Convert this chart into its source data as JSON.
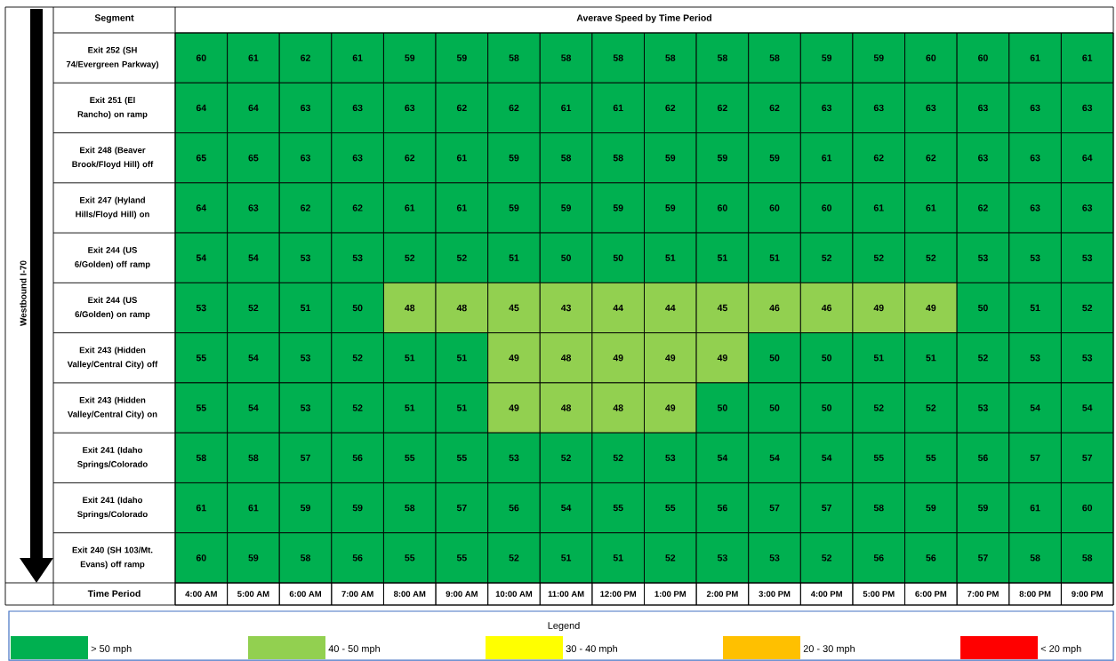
{
  "chart_data": {
    "type": "heatmap",
    "title": "Averave Speed by Time Period",
    "xlabel": "Time Period",
    "ylabel": "Westbound I-70",
    "legend_title": "Legend",
    "annotations": [
      "Segment",
      "> 50 mph",
      "40 - 50 mph",
      "30 - 40 mph",
      "20 - 30 mph",
      "< 20 mph"
    ],
    "categories": [
      "4:00 AM",
      "5:00 AM",
      "6:00 AM",
      "7:00 AM",
      "8:00 AM",
      "9:00 AM",
      "10:00 AM",
      "11:00 AM",
      "12:00 PM",
      "1:00 PM",
      "2:00 PM",
      "3:00 PM",
      "4:00 PM",
      "5:00 PM",
      "6:00 PM",
      "7:00 PM",
      "8:00 PM",
      "9:00 PM"
    ],
    "y_categories": [
      "Exit 252 (SH 74/Evergreen Parkway)",
      "Exit 251 (El Rancho) on ramp",
      "Exit 248 (Beaver Brook/Floyd Hill) off",
      "Exit 247 (Hyland Hills/Floyd Hill) on",
      "Exit 244 (US 6/Golden) off ramp",
      "Exit 244 (US 6/Golden) on ramp",
      "Exit 243 (Hidden Valley/Central City) off",
      "Exit 243 (Hidden Valley/Central City) on",
      "Exit 241 (Idaho Springs/Colorado",
      "Exit 241 (Idaho Springs/Colorado",
      "Exit 240 (SH 103/Mt. Evans) off ramp"
    ],
    "cells": [
      [
        60,
        61,
        62,
        61,
        59,
        59,
        58,
        58,
        58,
        58,
        58,
        58,
        59,
        59,
        60,
        60,
        61,
        61
      ],
      [
        64,
        64,
        63,
        63,
        63,
        62,
        62,
        61,
        61,
        62,
        62,
        62,
        63,
        63,
        63,
        63,
        63,
        63
      ],
      [
        65,
        65,
        63,
        63,
        62,
        61,
        59,
        58,
        58,
        59,
        59,
        59,
        61,
        62,
        62,
        63,
        63,
        64
      ],
      [
        64,
        63,
        62,
        62,
        61,
        61,
        59,
        59,
        59,
        59,
        60,
        60,
        60,
        61,
        61,
        62,
        63,
        63
      ],
      [
        54,
        54,
        53,
        53,
        52,
        52,
        51,
        50,
        50,
        51,
        51,
        51,
        52,
        52,
        52,
        53,
        53,
        53
      ],
      [
        53,
        52,
        51,
        50,
        48,
        48,
        45,
        43,
        44,
        44,
        45,
        46,
        46,
        49,
        49,
        50,
        51,
        52
      ],
      [
        55,
        54,
        53,
        52,
        51,
        51,
        49,
        48,
        49,
        49,
        49,
        50,
        50,
        51,
        51,
        52,
        53,
        53
      ],
      [
        55,
        54,
        53,
        52,
        51,
        51,
        49,
        48,
        48,
        49,
        50,
        50,
        50,
        52,
        52,
        53,
        54,
        54
      ],
      [
        58,
        58,
        57,
        56,
        55,
        55,
        53,
        52,
        52,
        53,
        54,
        54,
        54,
        55,
        55,
        56,
        57,
        57
      ],
      [
        61,
        61,
        59,
        59,
        58,
        57,
        56,
        54,
        55,
        55,
        56,
        57,
        57,
        58,
        59,
        59,
        61,
        60
      ],
      [
        60,
        59,
        58,
        56,
        55,
        55,
        52,
        51,
        51,
        52,
        53,
        53,
        52,
        56,
        56,
        57,
        58,
        58
      ]
    ],
    "colors": [
      [
        "#00b050",
        "#00b050",
        "#00b050",
        "#00b050",
        "#00b050",
        "#00b050",
        "#00b050",
        "#00b050",
        "#00b050",
        "#00b050",
        "#00b050",
        "#00b050",
        "#00b050",
        "#00b050",
        "#00b050",
        "#00b050",
        "#00b050",
        "#00b050"
      ],
      [
        "#00b050",
        "#00b050",
        "#00b050",
        "#00b050",
        "#00b050",
        "#00b050",
        "#00b050",
        "#00b050",
        "#00b050",
        "#00b050",
        "#00b050",
        "#00b050",
        "#00b050",
        "#00b050",
        "#00b050",
        "#00b050",
        "#00b050",
        "#00b050"
      ],
      [
        "#00b050",
        "#00b050",
        "#00b050",
        "#00b050",
        "#00b050",
        "#00b050",
        "#00b050",
        "#00b050",
        "#00b050",
        "#00b050",
        "#00b050",
        "#00b050",
        "#00b050",
        "#00b050",
        "#00b050",
        "#00b050",
        "#00b050",
        "#00b050"
      ],
      [
        "#00b050",
        "#00b050",
        "#00b050",
        "#00b050",
        "#00b050",
        "#00b050",
        "#00b050",
        "#00b050",
        "#00b050",
        "#00b050",
        "#00b050",
        "#00b050",
        "#00b050",
        "#00b050",
        "#00b050",
        "#00b050",
        "#00b050",
        "#00b050"
      ],
      [
        "#00b050",
        "#00b050",
        "#00b050",
        "#00b050",
        "#00b050",
        "#00b050",
        "#00b050",
        "#00b050",
        "#00b050",
        "#00b050",
        "#00b050",
        "#00b050",
        "#00b050",
        "#00b050",
        "#00b050",
        "#00b050",
        "#00b050",
        "#00b050"
      ],
      [
        "#00b050",
        "#00b050",
        "#00b050",
        "#00b050",
        "#92d050",
        "#92d050",
        "#92d050",
        "#92d050",
        "#92d050",
        "#92d050",
        "#92d050",
        "#92d050",
        "#92d050",
        "#92d050",
        "#92d050",
        "#00b050",
        "#00b050",
        "#00b050"
      ],
      [
        "#00b050",
        "#00b050",
        "#00b050",
        "#00b050",
        "#00b050",
        "#00b050",
        "#92d050",
        "#92d050",
        "#92d050",
        "#92d050",
        "#92d050",
        "#00b050",
        "#00b050",
        "#00b050",
        "#00b050",
        "#00b050",
        "#00b050",
        "#00b050"
      ],
      [
        "#00b050",
        "#00b050",
        "#00b050",
        "#00b050",
        "#00b050",
        "#00b050",
        "#92d050",
        "#92d050",
        "#92d050",
        "#92d050",
        "#00b050",
        "#00b050",
        "#00b050",
        "#00b050",
        "#00b050",
        "#00b050",
        "#00b050",
        "#00b050"
      ],
      [
        "#00b050",
        "#00b050",
        "#00b050",
        "#00b050",
        "#00b050",
        "#00b050",
        "#00b050",
        "#00b050",
        "#00b050",
        "#00b050",
        "#00b050",
        "#00b050",
        "#00b050",
        "#00b050",
        "#00b050",
        "#00b050",
        "#00b050",
        "#00b050"
      ],
      [
        "#00b050",
        "#00b050",
        "#00b050",
        "#00b050",
        "#00b050",
        "#00b050",
        "#00b050",
        "#00b050",
        "#00b050",
        "#00b050",
        "#00b050",
        "#00b050",
        "#00b050",
        "#00b050",
        "#00b050",
        "#00b050",
        "#00b050",
        "#00b050"
      ],
      [
        "#00b050",
        "#00b050",
        "#00b050",
        "#00b050",
        "#00b050",
        "#00b050",
        "#00b050",
        "#00b050",
        "#00b050",
        "#00b050",
        "#00b050",
        "#00b050",
        "#00b050",
        "#00b050",
        "#00b050",
        "#00b050",
        "#00b050",
        "#00b050"
      ]
    ],
    "data_labels": true
  }
}
